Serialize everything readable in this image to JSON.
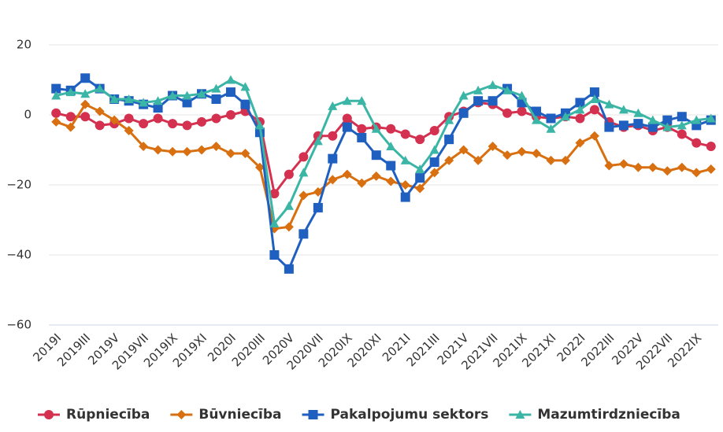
{
  "chart_data": {
    "type": "line",
    "categories": [
      "2019I",
      null,
      "2019III",
      null,
      "2019V",
      null,
      "2019VII",
      null,
      "2019IX",
      null,
      "2019XI",
      null,
      "2020I",
      null,
      "2020III",
      null,
      "2020V",
      null,
      "2020VII",
      null,
      "2020IX",
      null,
      "2020XI",
      null,
      "2021I",
      null,
      "2021III",
      null,
      "2021V",
      null,
      "2021VII",
      null,
      "2021IX",
      null,
      "2021XI",
      null,
      "2022I",
      null,
      "2022III",
      null,
      "2022V",
      null,
      "2022VII",
      null,
      "2022IX",
      null
    ],
    "series": [
      {
        "name": "Rūpniecība",
        "color": "#d4304f",
        "marker": "circle",
        "values": [
          0.5,
          -0.5,
          -0.5,
          -3,
          -2.5,
          -1,
          -2.5,
          -1,
          -2.5,
          -3,
          -2,
          -1,
          0,
          1,
          -2,
          -22.5,
          -17,
          -12,
          -6,
          -6,
          -1,
          -4,
          -3.5,
          -4,
          -5.5,
          -7,
          -4.5,
          -0.5,
          1,
          3.5,
          3,
          0.5,
          1,
          -0.5,
          -1,
          -0.5,
          -1,
          1.5,
          -2,
          -3.5,
          -3,
          -4.5,
          -3.5,
          -5.5,
          -8,
          -9
        ]
      },
      {
        "name": "Būvniecība",
        "color": "#d86f10",
        "marker": "diamond",
        "values": [
          -2,
          -3.5,
          3,
          1,
          -1.5,
          -4.5,
          -9,
          -10,
          -10.5,
          -10.5,
          -10,
          -9,
          -11,
          -11,
          -15,
          -32.5,
          -32,
          -23,
          -22,
          -18.5,
          -17,
          -19.5,
          -17.5,
          -19,
          -20,
          -21,
          -16.5,
          -13,
          -10,
          -13,
          -9,
          -11.5,
          -10.5,
          -11,
          -13,
          -13,
          -8,
          -6,
          -14.5,
          -14,
          -15,
          -15,
          -16,
          -15,
          -16.5,
          -15.5
        ]
      },
      {
        "name": "Pakalpojumu sektors",
        "color": "#1f5fbf",
        "marker": "square",
        "values": [
          7.5,
          7,
          10.5,
          7.5,
          4.5,
          4,
          3,
          2,
          5.5,
          3.5,
          6,
          4.5,
          6.5,
          3,
          -5,
          -40,
          -44,
          -34,
          -26.5,
          -12.5,
          -3.5,
          -6.5,
          -11.5,
          -14.5,
          -23.5,
          -18,
          -13.5,
          -7,
          0.5,
          4,
          4,
          7.5,
          3.5,
          1,
          -1,
          0.5,
          3.5,
          6.5,
          -3.5,
          -3,
          -2.5,
          -3.5,
          -1.5,
          -0.5,
          -3,
          -1.5
        ]
      },
      {
        "name": "Mazumtirdzniecība",
        "color": "#3bb5a5",
        "marker": "triangle",
        "values": [
          5.5,
          6.5,
          6,
          7.5,
          4.5,
          4.5,
          3.5,
          4,
          5.5,
          5.5,
          6,
          7.5,
          10,
          8,
          -3,
          -31,
          -26,
          -16.5,
          -7.5,
          2.5,
          4,
          4,
          -4,
          -9,
          -13,
          -15.5,
          -10,
          -1.5,
          5.5,
          7,
          8.5,
          7,
          5.5,
          -1.5,
          -4,
          -0.5,
          1.5,
          4.5,
          3,
          1.5,
          0.5,
          -1.5,
          -3.5,
          -3,
          -1.5,
          -1
        ]
      }
    ],
    "ylim": [
      -60,
      20
    ],
    "yticks": [
      {
        "value": -60,
        "label": "−60"
      },
      {
        "value": -40,
        "label": "−40"
      },
      {
        "value": -20,
        "label": "−20"
      },
      0,
      20
    ],
    "grid": true
  }
}
